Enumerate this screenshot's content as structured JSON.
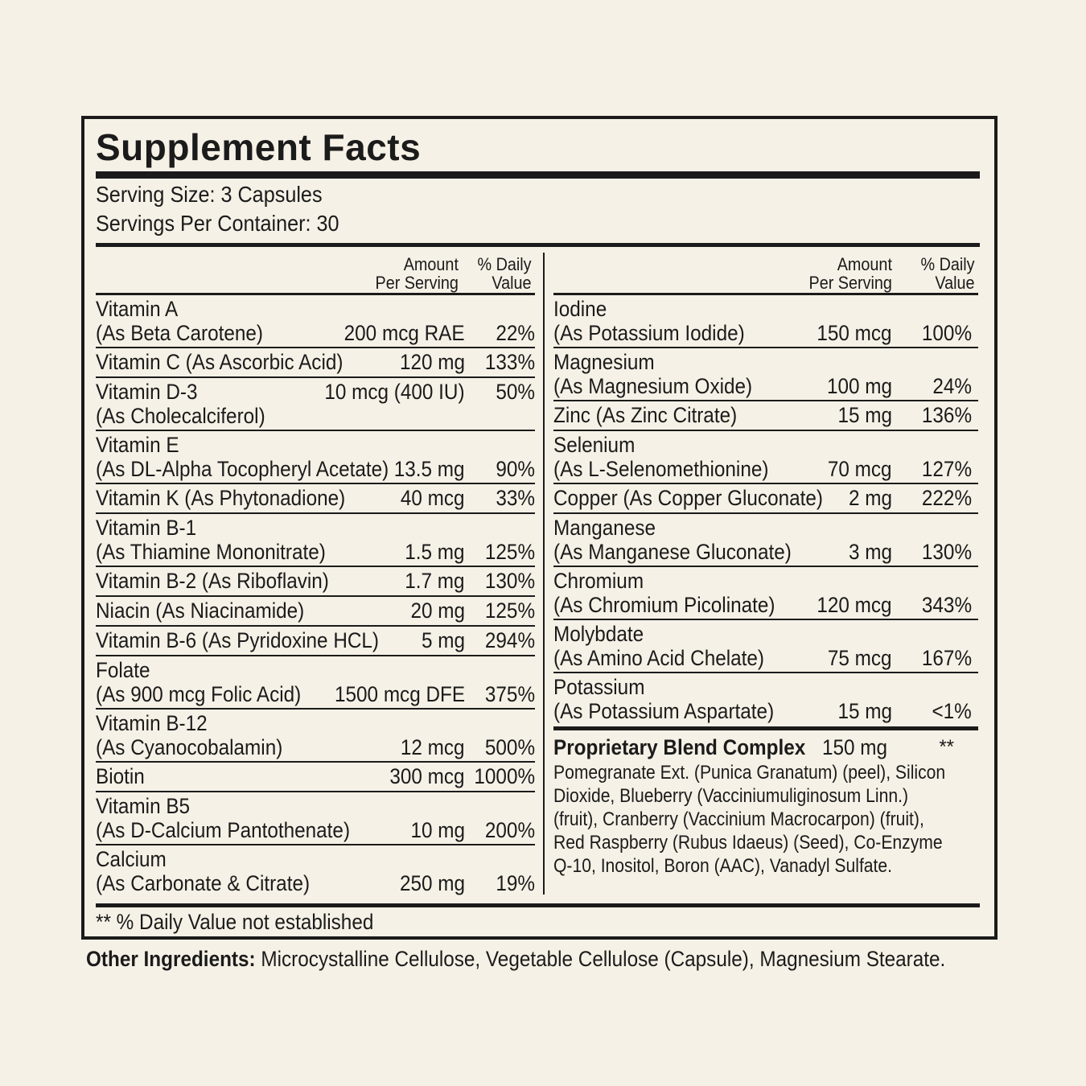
{
  "title": "Supplement Facts",
  "serving_size": "Serving Size: 3 Capsules",
  "servings_per_container": "Servings Per Container: 30",
  "header": {
    "amount_line1": "Amount",
    "amount_line2": "Per Serving",
    "dv_line1": "% Daily",
    "dv_line2": "Value"
  },
  "left_rows": [
    {
      "name": "Vitamin A",
      "sub": "(As Beta Carotene)",
      "amount": "200 mcg RAE",
      "dv": "22%"
    },
    {
      "name": "Vitamin C (As Ascorbic Acid)",
      "sub": "",
      "amount": "120 mg",
      "dv": "133%"
    },
    {
      "name": "Vitamin D-3",
      "sub": "(As Cholecalciferol)",
      "amount": "10 mcg (400 IU)",
      "dv": "50%"
    },
    {
      "name": "Vitamin E",
      "sub": "(As DL-Alpha Tocopheryl Acetate)",
      "amount": "13.5 mg",
      "dv": "90%"
    },
    {
      "name": "Vitamin K (As Phytonadione)",
      "sub": "",
      "amount": "40 mcg",
      "dv": "33%"
    },
    {
      "name": "Vitamin B-1",
      "sub": "(As Thiamine Mononitrate)",
      "amount": "1.5 mg",
      "dv": "125%"
    },
    {
      "name": "Vitamin B-2 (As Riboflavin)",
      "sub": "",
      "amount": "1.7 mg",
      "dv": "130%"
    },
    {
      "name": "Niacin (As Niacinamide)",
      "sub": "",
      "amount": "20 mg",
      "dv": "125%"
    },
    {
      "name": "Vitamin B-6 (As Pyridoxine HCL)",
      "sub": "",
      "amount": "5 mg",
      "dv": "294%"
    },
    {
      "name": "Folate",
      "sub": "(As 900 mcg Folic Acid)",
      "amount": "1500 mcg DFE",
      "dv": "375%"
    },
    {
      "name": "Vitamin B-12",
      "sub": "(As Cyanocobalamin)",
      "amount": "12 mcg",
      "dv": "500%"
    },
    {
      "name": "Biotin",
      "sub": "",
      "amount": "300 mcg",
      "dv": "1000%"
    },
    {
      "name": "Vitamin B5",
      "sub": "(As D-Calcium Pantothenate)",
      "amount": "10 mg",
      "dv": "200%"
    },
    {
      "name": "Calcium",
      "sub": "(As Carbonate & Citrate)",
      "amount": "250 mg",
      "dv": "19%"
    }
  ],
  "right_rows": [
    {
      "name": "Iodine",
      "sub": "(As Potassium Iodide)",
      "amount": "150 mcg",
      "dv": "100%"
    },
    {
      "name": "Magnesium",
      "sub": "(As Magnesium Oxide)",
      "amount": "100 mg",
      "dv": "24%"
    },
    {
      "name": "Zinc (As Zinc Citrate)",
      "sub": "",
      "amount": "15 mg",
      "dv": "136%"
    },
    {
      "name": "Selenium",
      "sub": "(As L-Selenomethionine)",
      "amount": "70 mcg",
      "dv": "127%"
    },
    {
      "name": "Copper (As Copper Gluconate)",
      "sub": "",
      "amount": "2 mg",
      "dv": "222%"
    },
    {
      "name": "Manganese",
      "sub": "(As Manganese Gluconate)",
      "amount": "3 mg",
      "dv": "130%"
    },
    {
      "name": "Chromium",
      "sub": "(As Chromium Picolinate)",
      "amount": "120 mcg",
      "dv": "343%"
    },
    {
      "name": "Molybdate",
      "sub": "(As Amino Acid Chelate)",
      "amount": "75 mcg",
      "dv": "167%"
    },
    {
      "name": "Potassium",
      "sub": "(As Potassium Aspartate)",
      "amount": "15 mg",
      "dv": "<1%"
    }
  ],
  "blend": {
    "name": "Proprietary Blend Complex",
    "amount": "150 mg",
    "dv": "**",
    "ingredients": "Pomegranate Ext. (Punica Granatum) (peel), Silicon Dioxide, Blueberry (Vacciniumuliginosum Linn.) (fruit), Cranberry (Vaccinium Macrocarpon) (fruit), Red Raspberry (Rubus Idaeus) (Seed), Co-Enzyme Q-10, Inositol, Boron (AAC), Vanadyl Sulfate."
  },
  "footnote": "** % Daily Value not established",
  "other_ingredients": {
    "label": "Other Ingredients:",
    "text": "Microcystalline Cellulose,  Vegetable Cellulose (Capsule), Magnesium Stearate."
  }
}
